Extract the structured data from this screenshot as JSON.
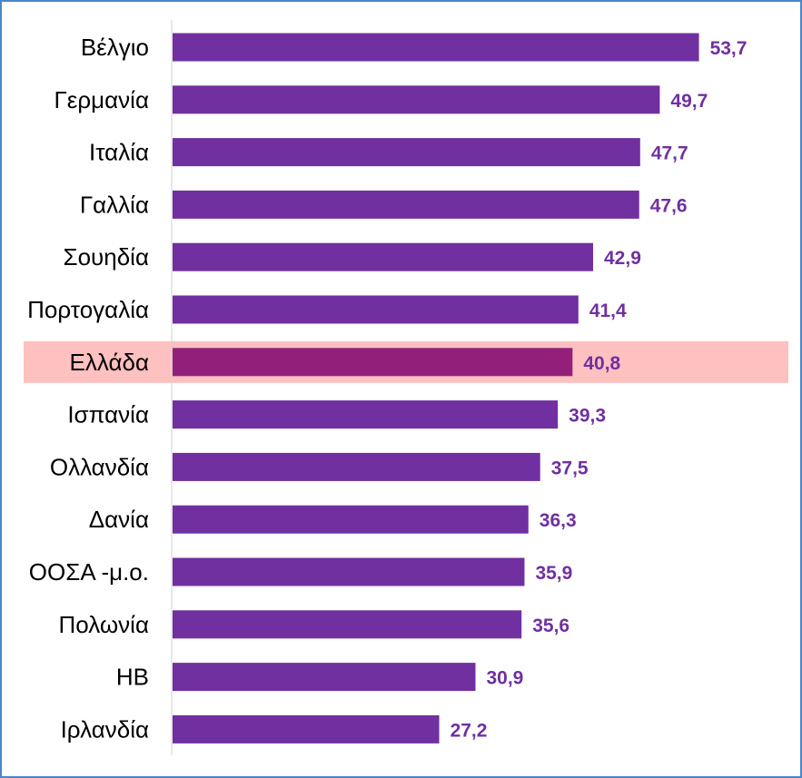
{
  "colors": {
    "bar": "#7030a0",
    "highlight_bar": "#92207a",
    "highlight_band": "#ffc0c0",
    "value_label": "#7030a0",
    "highlight_value_label": "#7030a0",
    "axis": "#d0d0d0",
    "frame": "#4a86c8"
  },
  "chart_data": {
    "type": "bar",
    "orientation": "horizontal",
    "title": "",
    "xlabel": "",
    "ylabel": "",
    "xlim": [
      0,
      55.5
    ],
    "grid": false,
    "legend": "none",
    "value_labels": true,
    "highlight_category": "Ελλάδα",
    "categories": [
      "Βέλγιο",
      "Γερμανία",
      "Ιταλία",
      "Γαλλία",
      "Σουηδία",
      "Πορτογαλία",
      "Ελλάδα",
      "Ισπανία",
      "Ολλανδία",
      "Δανία",
      "ΟΟΣΑ -μ.ο.",
      "Πολωνία",
      "ΗΒ",
      "Ιρλανδία"
    ],
    "values": [
      53.7,
      49.7,
      47.7,
      47.6,
      42.9,
      41.4,
      40.8,
      39.3,
      37.5,
      36.3,
      35.9,
      35.6,
      30.9,
      27.2
    ],
    "value_text": [
      "53,7",
      "49,7",
      "47,7",
      "47,6",
      "42,9",
      "41,4",
      "40,8",
      "39,3",
      "37,5",
      "36,3",
      "35,9",
      "35,6",
      "30,9",
      "27,2"
    ]
  }
}
